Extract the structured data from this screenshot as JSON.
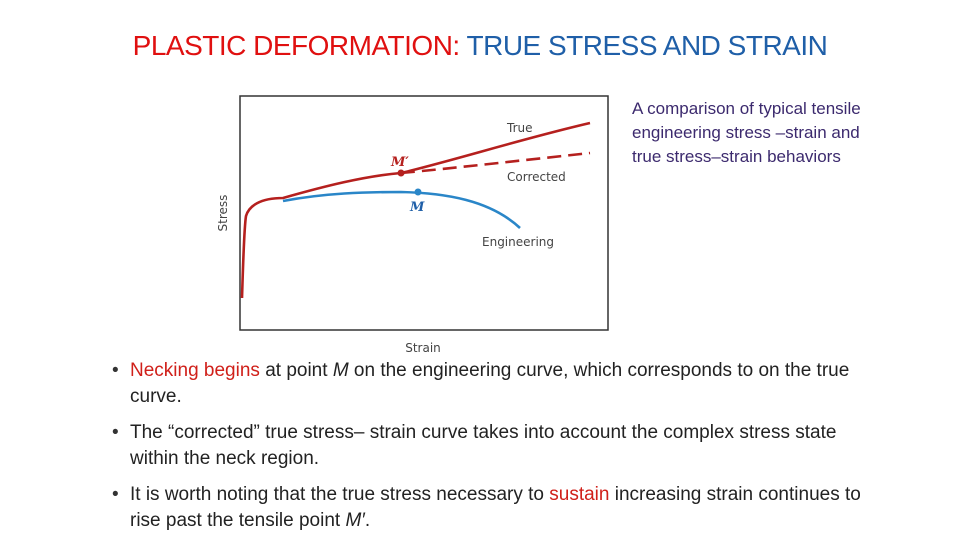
{
  "title": {
    "part1": "PLASTIC DEFORMATION:",
    "part2": "TRUE STRESS AND STRAIN"
  },
  "chart_data": {
    "type": "line",
    "xlabel": "Strain",
    "ylabel": "Stress",
    "axis_ticks": "none",
    "colors": {
      "true": "#b5201e",
      "engineering": "#2a86c8"
    },
    "series": [
      {
        "name": "True",
        "style": "solid"
      },
      {
        "name": "Corrected",
        "style": "dashed"
      },
      {
        "name": "Engineering",
        "style": "solid"
      }
    ],
    "points": [
      {
        "label": "M′",
        "on": "True"
      },
      {
        "label": "M",
        "on": "Engineering"
      }
    ]
  },
  "caption": "A comparison of typical tensile engineering stress –strain and true stress–strain behaviors",
  "bullets": [
    {
      "highlight": "Necking begins",
      "text_a": " at point ",
      "point": "M",
      "text_b": " on the engineering curve, which corresponds to on the true curve."
    },
    {
      "text": "The “corrected” true stress– strain curve takes into account the complex stress state within the neck region."
    },
    {
      "text_a": "It is worth noting that the true stress necessary to ",
      "highlight": "sustain",
      "text_b": " increasing strain continues to rise past the tensile point ",
      "point": "M′",
      "text_c": "."
    }
  ]
}
